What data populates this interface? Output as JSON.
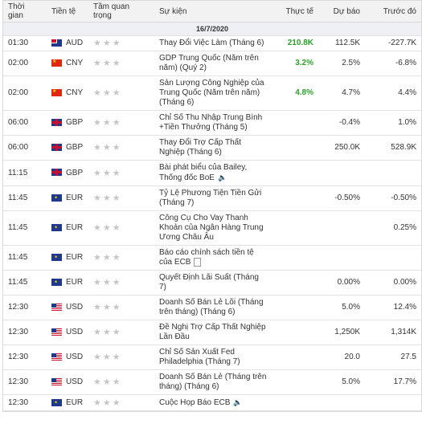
{
  "header": {
    "time": "Thời gian",
    "currency": "Tiền tệ",
    "importance": "Tầm quan trọng",
    "event": "Sự kiện",
    "actual": "Thực tế",
    "forecast": "Dự báo",
    "previous": "Trước đó"
  },
  "date": "16/7/2020",
  "icons": {
    "star": "star-icon",
    "speaker": "speaker-icon",
    "document": "document-icon"
  },
  "colors": {
    "actual_positive": "#2ca02c"
  },
  "rows": [
    {
      "time": "01:30",
      "flag": "au",
      "currency": "AUD",
      "event": "Thay Đổi Việc Làm (Tháng 6)",
      "actual": "210.8K",
      "forecast": "112.5K",
      "previous": "-227.7K"
    },
    {
      "time": "02:00",
      "flag": "cn",
      "currency": "CNY",
      "event": "GDP Trung Quốc (Năm trên năm) (Quý 2)",
      "actual": "3.2%",
      "forecast": "2.5%",
      "previous": "-6.8%"
    },
    {
      "time": "02:00",
      "flag": "cn",
      "currency": "CNY",
      "event": "Sản Lượng Công Nghiệp của Trung Quốc (Năm trên năm) (Tháng 6)",
      "actual": "4.8%",
      "forecast": "4.7%",
      "previous": "4.4%"
    },
    {
      "time": "06:00",
      "flag": "gb",
      "currency": "GBP",
      "event": "Chỉ Số Thu Nhập Trung Bình +Tiền Thưởng (Tháng 5)",
      "actual": "",
      "forecast": "-0.4%",
      "previous": "1.0%"
    },
    {
      "time": "06:00",
      "flag": "gb",
      "currency": "GBP",
      "event": "Thay Đổi Trợ Cấp Thất Nghiệp (Tháng 6)",
      "actual": "",
      "forecast": "250.0K",
      "previous": "528.9K"
    },
    {
      "time": "11:15",
      "flag": "gb",
      "currency": "GBP",
      "event": "Bài phát biểu của Bailey, Thống đốc BoE",
      "actual": "",
      "forecast": "",
      "previous": "",
      "speaker": true
    },
    {
      "time": "11:45",
      "flag": "eu",
      "currency": "EUR",
      "event": "Tỷ Lệ Phương Tiện Tiền Gửi (Tháng 7)",
      "actual": "",
      "forecast": "-0.50%",
      "previous": "-0.50%"
    },
    {
      "time": "11:45",
      "flag": "eu",
      "currency": "EUR",
      "event": "Công Cụ Cho Vay Thanh Khoản của Ngân Hàng Trung Ương Châu Âu",
      "actual": "",
      "forecast": "",
      "previous": "0.25%"
    },
    {
      "time": "11:45",
      "flag": "eu",
      "currency": "EUR",
      "event": "Báo cáo chính sách tiền tệ của ECB",
      "actual": "",
      "forecast": "",
      "previous": "",
      "document": true
    },
    {
      "time": "11:45",
      "flag": "eu",
      "currency": "EUR",
      "event": "Quyết Định Lãi Suất (Tháng 7)",
      "actual": "",
      "forecast": "0.00%",
      "previous": "0.00%"
    },
    {
      "time": "12:30",
      "flag": "us",
      "currency": "USD",
      "event": "Doanh Số Bán Lẻ Lõi (Tháng trên tháng) (Tháng 6)",
      "actual": "",
      "forecast": "5.0%",
      "previous": "12.4%"
    },
    {
      "time": "12:30",
      "flag": "us",
      "currency": "USD",
      "event": "Đề Nghị Trợ Cấp Thất Nghiệp Lần Đầu",
      "actual": "",
      "forecast": "1,250K",
      "previous": "1,314K"
    },
    {
      "time": "12:30",
      "flag": "us",
      "currency": "USD",
      "event": "Chỉ Số Sản Xuất Fed Philadelphia (Tháng 7)",
      "actual": "",
      "forecast": "20.0",
      "previous": "27.5"
    },
    {
      "time": "12:30",
      "flag": "us",
      "currency": "USD",
      "event": "Doanh Số Bán Lẻ (Tháng trên tháng) (Tháng 6)",
      "actual": "",
      "forecast": "5.0%",
      "previous": "17.7%"
    },
    {
      "time": "12:30",
      "flag": "eu",
      "currency": "EUR",
      "event": "Cuộc Họp Báo ECB",
      "actual": "",
      "forecast": "",
      "previous": "",
      "speaker": true
    }
  ]
}
